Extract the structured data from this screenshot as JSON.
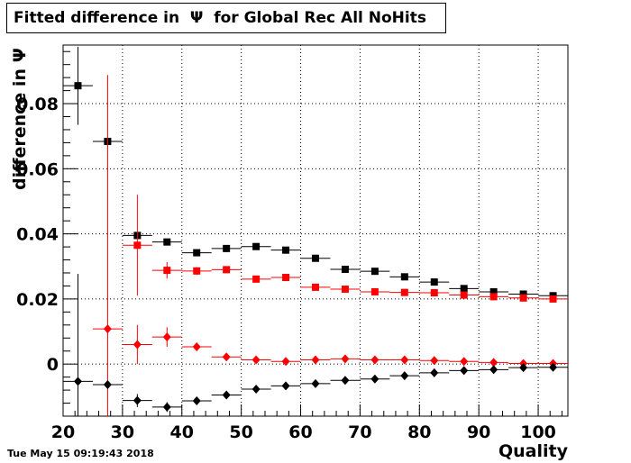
{
  "chart_data": {
    "type": "scatter",
    "title": "Fitted difference in  Ψ  for Global Rec All NoHits",
    "xlabel": "Quality",
    "ylabel": "difference in  Ψ",
    "xlim": [
      20,
      105
    ],
    "ylim": [
      -0.016,
      0.098
    ],
    "grid": true,
    "x_ticks": [
      20,
      30,
      40,
      50,
      60,
      70,
      80,
      90,
      100
    ],
    "y_ticks": [
      0,
      0.02,
      0.04,
      0.06,
      0.08
    ],
    "y_tick_labels": [
      "0",
      "0.02",
      "0.04",
      "0.06",
      "0.08"
    ],
    "bin_half_width": 2.5,
    "series": [
      {
        "marker": "square",
        "color": "#000000",
        "x": [
          22.5,
          27.5,
          32.5,
          37.5,
          42.5,
          47.5,
          52.5,
          57.5,
          62.5,
          67.5,
          72.5,
          77.5,
          82.5,
          87.5,
          92.5,
          97.5,
          102.5
        ],
        "y": [
          0.0855,
          0.0684,
          0.0395,
          0.0375,
          0.0342,
          0.0355,
          0.0361,
          0.035,
          0.0325,
          0.0291,
          0.0285,
          0.0268,
          0.0252,
          0.0232,
          0.0222,
          0.0215,
          0.021
        ],
        "yerr": [
          0.012,
          0.001,
          0.001,
          0.001,
          0.001,
          0.001,
          0.0008,
          0.0008,
          0.0007,
          0.0007,
          0.0006,
          0.0006,
          0.0006,
          0.0005,
          0.0005,
          0.0005,
          0.0005
        ]
      },
      {
        "marker": "square",
        "color": "#ff0000",
        "x": [
          32.5,
          37.5,
          42.5,
          47.5,
          52.5,
          57.5,
          62.5,
          67.5,
          72.5,
          77.5,
          82.5,
          87.5,
          92.5,
          97.5,
          102.5
        ],
        "y": [
          0.0365,
          0.0288,
          0.0286,
          0.029,
          0.0261,
          0.0266,
          0.0236,
          0.023,
          0.0222,
          0.022,
          0.0219,
          0.0212,
          0.0207,
          0.0203,
          0.02
        ],
        "yerr": [
          0.0155,
          0.0025,
          0.0012,
          0.0009,
          0.0008,
          0.0007,
          0.0006,
          0.0006,
          0.0005,
          0.0005,
          0.0005,
          0.0005,
          0.0005,
          0.0005,
          0.0005
        ]
      },
      {
        "marker": "diamond",
        "color": "#ff0000",
        "x": [
          27.5,
          32.5,
          37.5,
          42.5,
          47.5,
          52.5,
          57.5,
          62.5,
          67.5,
          72.5,
          77.5,
          82.5,
          87.5,
          92.5,
          97.5,
          102.5
        ],
        "y": [
          0.0108,
          0.006,
          0.0083,
          0.0053,
          0.0022,
          0.0013,
          0.0008,
          0.0013,
          0.0016,
          0.0013,
          0.0013,
          0.0011,
          0.0008,
          0.0005,
          0.0002,
          0.0002
        ],
        "yerr": [
          0.078,
          0.006,
          0.003,
          0.001,
          0.0008,
          0.0006,
          0.0005,
          0.0005,
          0.0005,
          0.0004,
          0.0004,
          0.0004,
          0.0004,
          0.0004,
          0.0004,
          0.0004
        ]
      },
      {
        "marker": "diamond",
        "color": "#000000",
        "x": [
          22.5,
          27.5,
          32.5,
          37.5,
          42.5,
          47.5,
          52.5,
          57.5,
          62.5,
          67.5,
          72.5,
          77.5,
          82.5,
          87.5,
          92.5,
          97.5,
          102.5
        ],
        "y": [
          -0.0053,
          -0.0063,
          -0.0112,
          -0.0132,
          -0.0113,
          -0.0095,
          -0.0077,
          -0.0067,
          -0.006,
          -0.005,
          -0.0046,
          -0.0036,
          -0.0027,
          -0.002,
          -0.0017,
          -0.0011,
          -0.001
        ],
        "yerr": [
          0.033,
          0.001,
          0.002,
          0.0015,
          0.0008,
          0.0007,
          0.0006,
          0.0005,
          0.0005,
          0.0004,
          0.0004,
          0.0004,
          0.0004,
          0.0004,
          0.0004,
          0.0004,
          0.0004
        ]
      }
    ]
  },
  "footer": {
    "timestamp": "Tue May 15 09:19:43 2018"
  }
}
